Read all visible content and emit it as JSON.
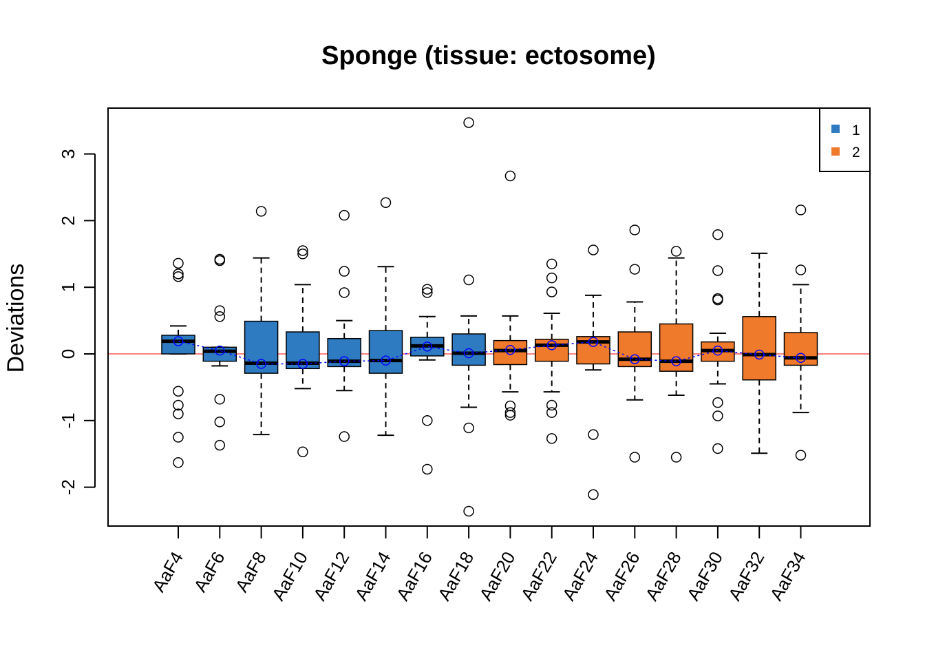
{
  "chart_data": {
    "type": "box",
    "title": "Sponge (tissue: ectosome)",
    "xlabel": "",
    "ylabel": "Deviations",
    "ylim": [
      -2.6,
      3.7
    ],
    "yticks": [
      -2,
      -1,
      0,
      1,
      2,
      3
    ],
    "ytick_labels": [
      "-2",
      "-1",
      "0",
      "1",
      "2",
      "3"
    ],
    "reference_line": {
      "y": 0,
      "color": "#ff0000"
    },
    "mean_line": {
      "style": "dotted",
      "color": "#0000ff"
    },
    "colors": {
      "1": "#2f7bc1",
      "2": "#f07a2b"
    },
    "legend": {
      "position": "top-right",
      "entries": [
        {
          "label": "1",
          "color": "#2f7bc1"
        },
        {
          "label": "2",
          "color": "#f07a2b"
        }
      ]
    },
    "categories": [
      "AaF4",
      "AaF6",
      "AaF8",
      "AaF10",
      "AaF12",
      "AaF14",
      "AaF16",
      "AaF18",
      "AaF20",
      "AaF22",
      "AaF24",
      "AaF26",
      "AaF28",
      "AaF30",
      "AaF32",
      "AaF34"
    ],
    "group": [
      1,
      1,
      1,
      1,
      1,
      1,
      1,
      1,
      2,
      2,
      2,
      2,
      2,
      2,
      2,
      2
    ],
    "boxes": [
      {
        "whisker_low": 0.0,
        "q1": 0.0,
        "median": 0.19,
        "q3": 0.28,
        "whisker_high": 0.42,
        "mean": 0.19,
        "outliers": [
          1.36,
          1.2,
          1.16,
          -0.56,
          -0.77,
          -0.9,
          -1.25,
          -1.63
        ]
      },
      {
        "whisker_low": -0.18,
        "q1": -0.11,
        "median": 0.04,
        "q3": 0.1,
        "whisker_high": 0.1,
        "mean": 0.05,
        "outliers": [
          1.42,
          1.4,
          0.65,
          0.56,
          -0.68,
          -1.02,
          -1.37
        ]
      },
      {
        "whisker_low": -1.21,
        "q1": -0.29,
        "median": -0.14,
        "q3": 0.49,
        "whisker_high": 1.44,
        "mean": -0.15,
        "outliers": [
          2.14
        ]
      },
      {
        "whisker_low": -0.52,
        "q1": -0.22,
        "median": -0.14,
        "q3": 0.33,
        "whisker_high": 1.04,
        "mean": -0.15,
        "outliers": [
          1.55,
          1.5,
          -1.47
        ]
      },
      {
        "whisker_low": -0.55,
        "q1": -0.19,
        "median": -0.11,
        "q3": 0.23,
        "whisker_high": 0.5,
        "mean": -0.11,
        "outliers": [
          2.08,
          1.24,
          0.92,
          -1.24
        ]
      },
      {
        "whisker_low": -1.22,
        "q1": -0.29,
        "median": -0.1,
        "q3": 0.35,
        "whisker_high": 1.31,
        "mean": -0.1,
        "outliers": [
          2.27
        ]
      },
      {
        "whisker_low": -0.09,
        "q1": -0.03,
        "median": 0.12,
        "q3": 0.25,
        "whisker_high": 0.56,
        "mean": 0.11,
        "outliers": [
          0.97,
          0.92,
          -1.0,
          -1.73
        ]
      },
      {
        "whisker_low": -0.8,
        "q1": -0.17,
        "median": 0.01,
        "q3": 0.3,
        "whisker_high": 0.57,
        "mean": 0.01,
        "outliers": [
          3.47,
          1.11,
          -1.11,
          -2.36
        ]
      },
      {
        "whisker_low": -0.57,
        "q1": -0.16,
        "median": 0.05,
        "q3": 0.2,
        "whisker_high": 0.57,
        "mean": 0.06,
        "outliers": [
          2.67,
          -0.78,
          -0.88,
          -0.92
        ]
      },
      {
        "whisker_low": -0.57,
        "q1": -0.11,
        "median": 0.13,
        "q3": 0.22,
        "whisker_high": 0.61,
        "mean": 0.13,
        "outliers": [
          1.35,
          1.14,
          0.93,
          -0.77,
          -0.88,
          -1.27
        ]
      },
      {
        "whisker_low": -0.24,
        "q1": -0.15,
        "median": 0.18,
        "q3": 0.26,
        "whisker_high": 0.88,
        "mean": 0.18,
        "outliers": [
          1.56,
          -1.21,
          -2.11
        ]
      },
      {
        "whisker_low": -0.69,
        "q1": -0.19,
        "median": -0.08,
        "q3": 0.33,
        "whisker_high": 0.78,
        "mean": -0.08,
        "outliers": [
          1.86,
          1.27,
          -1.55
        ]
      },
      {
        "whisker_low": -0.62,
        "q1": -0.26,
        "median": -0.11,
        "q3": 0.45,
        "whisker_high": 1.44,
        "mean": -0.11,
        "outliers": [
          1.54,
          -1.55
        ]
      },
      {
        "whisker_low": -0.45,
        "q1": -0.11,
        "median": 0.05,
        "q3": 0.18,
        "whisker_high": 0.31,
        "mean": 0.05,
        "outliers": [
          1.79,
          1.25,
          0.83,
          0.81,
          -0.73,
          -0.93,
          -1.42
        ]
      },
      {
        "whisker_low": -1.49,
        "q1": -0.39,
        "median": -0.01,
        "q3": 0.56,
        "whisker_high": 1.51,
        "mean": -0.01,
        "outliers": []
      },
      {
        "whisker_low": -0.88,
        "q1": -0.17,
        "median": -0.06,
        "q3": 0.32,
        "whisker_high": 1.04,
        "mean": -0.06,
        "outliers": [
          2.16,
          1.26,
          -1.52
        ]
      }
    ]
  }
}
